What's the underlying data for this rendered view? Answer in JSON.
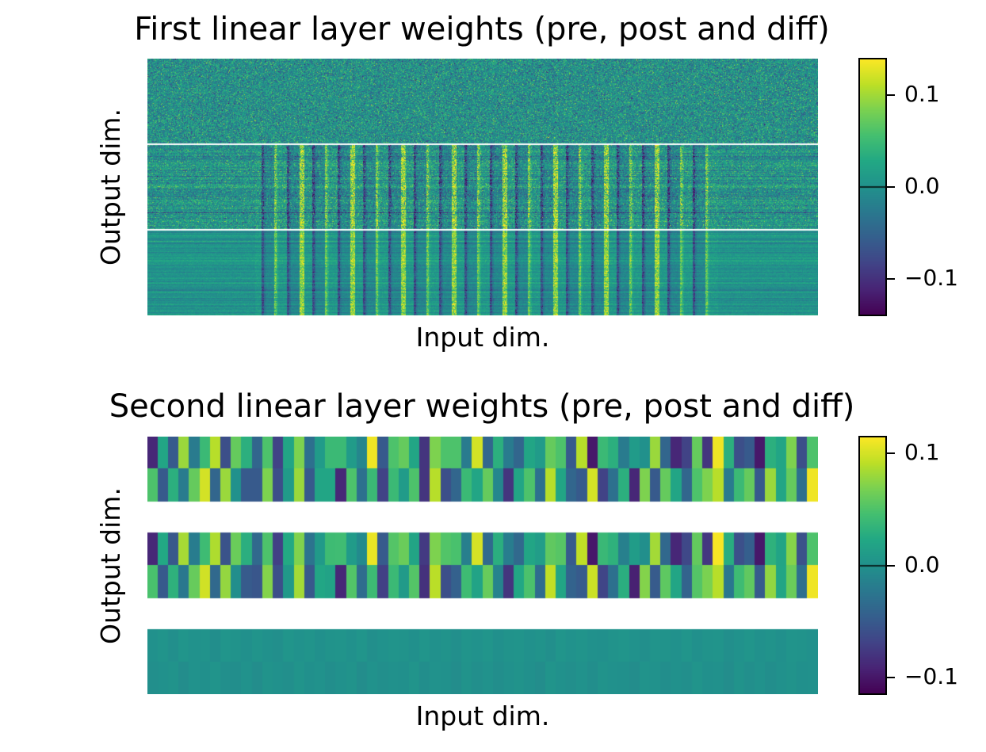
{
  "chart_data": [
    {
      "type": "heatmap",
      "title": "First linear layer weights (pre, post and diff)",
      "xlabel": "Input dim.",
      "ylabel": "Output dim.",
      "panels": [
        "pre",
        "post",
        "diff"
      ],
      "colormap": "viridis",
      "colorbar": {
        "vmin": -0.14,
        "vmax": 0.14,
        "ticks": [
          0.1,
          0.0,
          -0.1
        ],
        "tick_labels": [
          "0.1",
          "0.0",
          "−0.1"
        ]
      }
    },
    {
      "type": "heatmap",
      "title": "Second linear layer weights (pre, post and diff)",
      "xlabel": "Input dim.",
      "ylabel": "Output dim.",
      "panels": [
        "pre",
        "post",
        "diff"
      ],
      "colormap": "viridis",
      "columns": 64,
      "rows_per_panel": 2,
      "pre_row1": [
        -0.09,
        0.02,
        -0.05,
        0.08,
        -0.02,
        0.04,
        0.09,
        -0.06,
        0.06,
        0.03,
        -0.04,
        0.05,
        -0.07,
        0.02,
        0.07,
        -0.03,
        0.01,
        0.04,
        0.04,
        0.01,
        -0.01,
        0.11,
        -0.05,
        0.05,
        0.06,
        0.02,
        -0.08,
        0.07,
        0.05,
        0.05,
        -0.02,
        0.1,
        -0.04,
        0.03,
        -0.02,
        -0.04,
        0.02,
        0.01,
        0.06,
        0.05,
        -0.05,
        0.09,
        -0.1,
        0.04,
        0.03,
        -0.02,
        0.01,
        0.0,
        0.08,
        -0.04,
        -0.09,
        -0.07,
        0.06,
        -0.08,
        0.11,
        0.03,
        -0.06,
        -0.05,
        -0.1,
        0.03,
        0.02,
        0.07,
        -0.06,
        0.05
      ],
      "pre_row2": [
        0.05,
        -0.05,
        0.03,
        -0.02,
        0.06,
        0.1,
        -0.04,
        0.08,
        0.0,
        -0.05,
        -0.05,
        0.07,
        -0.06,
        0.01,
        0.08,
        -0.05,
        0.02,
        0.02,
        -0.09,
        0.05,
        -0.03,
        0.04,
        -0.07,
        0.04,
        0.01,
        0.05,
        -0.08,
        0.09,
        -0.06,
        -0.04,
        0.04,
        0.02,
        0.06,
        -0.01,
        -0.08,
        0.02,
        0.05,
        -0.03,
        0.09,
        0.02,
        -0.04,
        -0.05,
        0.1,
        -0.07,
        -0.03,
        0.03,
        -0.09,
        0.07,
        -0.05,
        0.06,
        0.02,
        -0.04,
        0.05,
        0.07,
        0.09,
        -0.02,
        0.04,
        0.06,
        -0.05,
        0.08,
        0.02,
        0.06,
        -0.03,
        0.11
      ],
      "diff_row1": [
        0.0,
        0.003,
        -0.002,
        0.004,
        0.001,
        0.002,
        -0.003,
        0.004,
        0.002,
        -0.001,
        0.003,
        0.0,
        -0.002,
        0.004,
        0.001,
        0.003,
        -0.001,
        0.002,
        0.003,
        0.0,
        0.004,
        -0.002,
        0.001,
        0.003,
        0.002,
        -0.001,
        0.004,
        0.0,
        0.002,
        -0.002,
        0.003,
        0.001,
        0.004,
        -0.001,
        0.002,
        0.003,
        0.0,
        0.002,
        -0.002,
        0.004,
        0.001,
        0.003,
        0.0,
        -0.001,
        0.002,
        0.004,
        0.001,
        -0.002,
        0.003,
        0.002,
        0.0,
        0.004,
        -0.001,
        0.002,
        0.003,
        -0.002,
        0.001,
        0.004,
        0.0,
        0.002,
        -0.001,
        0.003,
        0.002,
        0.0
      ],
      "diff_row2": [
        -0.002,
        0.0,
        0.002,
        -0.004,
        0.001,
        -0.001,
        0.003,
        -0.002,
        -0.003,
        0.001,
        -0.004,
        0.002,
        0.0,
        -0.002,
        0.003,
        -0.001,
        0.001,
        -0.003,
        0.0,
        0.002,
        -0.004,
        0.001,
        -0.002,
        0.0,
        -0.001,
        0.003,
        -0.003,
        0.001,
        0.0,
        -0.004,
        0.002,
        -0.002,
        0.001,
        -0.003,
        0.0,
        0.002,
        -0.001,
        -0.004,
        0.003,
        0.0,
        -0.002,
        0.001,
        -0.003,
        0.002,
        0.0,
        -0.001,
        -0.004,
        0.002,
        0.001,
        -0.003,
        0.0,
        -0.002,
        0.003,
        -0.001,
        0.0,
        -0.004,
        0.002,
        -0.002,
        0.001,
        -0.003,
        0.0,
        0.002,
        -0.001,
        0.0
      ],
      "colorbar": {
        "vmin": -0.115,
        "vmax": 0.115,
        "ticks": [
          0.1,
          0.0,
          -0.1
        ],
        "tick_labels": [
          "0.1",
          "0.0",
          "−0.1"
        ]
      }
    }
  ]
}
